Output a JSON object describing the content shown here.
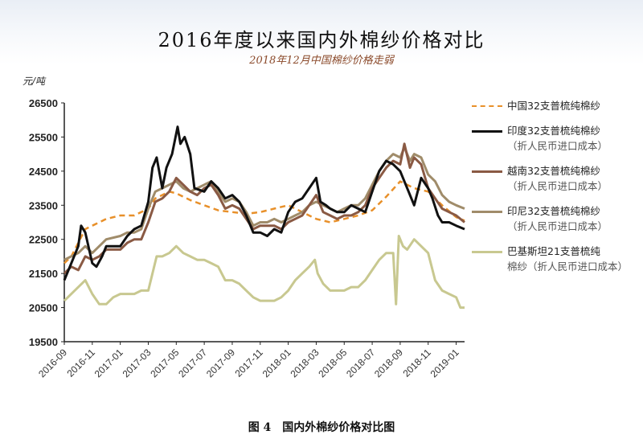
{
  "header": {
    "title": "2016年度以来国内外棉纱价格对比",
    "subtitle": "2018年12月中国棉纱价格走弱",
    "unit": "元/吨"
  },
  "caption": "图 4　国内外棉纱价格对比图",
  "chart_data": {
    "type": "line",
    "y_ticks": [
      "26500",
      "25500",
      "24500",
      "23500",
      "22500",
      "21500",
      "20500",
      "19500"
    ],
    "ylim": [
      19500,
      26500
    ],
    "x_tick_labels": [
      "2016-09",
      "2016-11",
      "2017-01",
      "2017-03",
      "2017-05",
      "2017-07",
      "2017-09",
      "2017-11",
      "2018-01",
      "2018-03",
      "2018-05",
      "2018-07",
      "2018-09",
      "2018-11",
      "2019-01"
    ],
    "x_range_months": [
      0,
      28.6
    ],
    "grid": false,
    "legend_position": "right",
    "series": [
      {
        "name_line1": "中国32支普梳纯棉纱",
        "name_line2": "",
        "color": "#e8902a",
        "dashed": true,
        "width": 2.5,
        "points": [
          [
            0,
            21800
          ],
          [
            0.5,
            22000
          ],
          [
            1,
            22400
          ],
          [
            1.5,
            22800
          ],
          [
            2,
            22900
          ],
          [
            2.5,
            23000
          ],
          [
            3,
            23100
          ],
          [
            4,
            23200
          ],
          [
            5,
            23200
          ],
          [
            6,
            23400
          ],
          [
            6.5,
            23700
          ],
          [
            7,
            23800
          ],
          [
            7.5,
            23900
          ],
          [
            8,
            23850
          ],
          [
            9,
            23650
          ],
          [
            10,
            23500
          ],
          [
            11,
            23350
          ],
          [
            12,
            23300
          ],
          [
            13,
            23250
          ],
          [
            14,
            23300
          ],
          [
            15,
            23400
          ],
          [
            16,
            23500
          ],
          [
            17,
            23300
          ],
          [
            18,
            23100
          ],
          [
            19,
            23000
          ],
          [
            20,
            23100
          ],
          [
            21,
            23200
          ],
          [
            22,
            23350
          ],
          [
            23,
            23750
          ],
          [
            24,
            24200
          ],
          [
            25,
            24000
          ],
          [
            26,
            23900
          ],
          [
            27,
            23500
          ],
          [
            28,
            23150
          ],
          [
            28.6,
            23050
          ]
        ]
      },
      {
        "name_line1": "印度32支普梳纯棉纱",
        "name_line2": "（折人民币进口成本）",
        "color": "#111111",
        "dashed": false,
        "width": 3,
        "points": [
          [
            0,
            21300
          ],
          [
            0.5,
            21800
          ],
          [
            1,
            22300
          ],
          [
            1.2,
            22900
          ],
          [
            1.5,
            22700
          ],
          [
            2,
            21800
          ],
          [
            2.3,
            21700
          ],
          [
            2.7,
            22000
          ],
          [
            3,
            22300
          ],
          [
            4,
            22300
          ],
          [
            4.5,
            22600
          ],
          [
            5,
            22800
          ],
          [
            5.5,
            22900
          ],
          [
            6,
            23600
          ],
          [
            6.3,
            24600
          ],
          [
            6.6,
            24900
          ],
          [
            7,
            24000
          ],
          [
            7.3,
            24600
          ],
          [
            7.7,
            25000
          ],
          [
            8.1,
            25800
          ],
          [
            8.3,
            25300
          ],
          [
            8.6,
            25500
          ],
          [
            9,
            25000
          ],
          [
            9.3,
            24000
          ],
          [
            10,
            23900
          ],
          [
            10.5,
            24200
          ],
          [
            11,
            24000
          ],
          [
            11.5,
            23700
          ],
          [
            12,
            23800
          ],
          [
            12.5,
            23600
          ],
          [
            13,
            23200
          ],
          [
            13.5,
            22700
          ],
          [
            14,
            22700
          ],
          [
            14.5,
            22600
          ],
          [
            15,
            22800
          ],
          [
            15.5,
            22700
          ],
          [
            16,
            23300
          ],
          [
            16.5,
            23600
          ],
          [
            17,
            23700
          ],
          [
            17.5,
            24000
          ],
          [
            18,
            24300
          ],
          [
            18.3,
            23600
          ],
          [
            18.7,
            23500
          ],
          [
            19,
            23400
          ],
          [
            19.5,
            23300
          ],
          [
            20,
            23300
          ],
          [
            20.5,
            23500
          ],
          [
            21,
            23400
          ],
          [
            21.5,
            23300
          ],
          [
            22,
            23900
          ],
          [
            22.5,
            24500
          ],
          [
            23,
            24800
          ],
          [
            23.5,
            24700
          ],
          [
            24,
            24500
          ],
          [
            24.5,
            24000
          ],
          [
            25,
            23500
          ],
          [
            25.5,
            24300
          ],
          [
            26,
            24000
          ],
          [
            26.3,
            23700
          ],
          [
            26.7,
            23200
          ],
          [
            27,
            23000
          ],
          [
            27.5,
            23000
          ],
          [
            28,
            22900
          ],
          [
            28.6,
            22800
          ]
        ]
      },
      {
        "name_line1": "越南32支普梳纯棉纱",
        "name_line2": "（折人民币进口成本）",
        "color": "#8a5a44",
        "dashed": false,
        "width": 3,
        "points": [
          [
            0,
            21500
          ],
          [
            0.5,
            21700
          ],
          [
            1,
            21600
          ],
          [
            1.5,
            22000
          ],
          [
            2,
            21900
          ],
          [
            2.5,
            22000
          ],
          [
            3,
            22200
          ],
          [
            4,
            22200
          ],
          [
            4.5,
            22400
          ],
          [
            5,
            22500
          ],
          [
            5.5,
            22500
          ],
          [
            6,
            23000
          ],
          [
            6.5,
            23600
          ],
          [
            7,
            23700
          ],
          [
            7.5,
            23900
          ],
          [
            8,
            24300
          ],
          [
            8.5,
            24100
          ],
          [
            9,
            23900
          ],
          [
            9.5,
            23800
          ],
          [
            10,
            24000
          ],
          [
            10.5,
            24100
          ],
          [
            11,
            23800
          ],
          [
            11.5,
            23400
          ],
          [
            12,
            23500
          ],
          [
            12.5,
            23400
          ],
          [
            13,
            23100
          ],
          [
            13.5,
            22800
          ],
          [
            14,
            22900
          ],
          [
            14.5,
            22900
          ],
          [
            15,
            22900
          ],
          [
            15.5,
            22800
          ],
          [
            16,
            23000
          ],
          [
            16.5,
            23100
          ],
          [
            17,
            23200
          ],
          [
            17.5,
            23500
          ],
          [
            18,
            23800
          ],
          [
            18.5,
            23300
          ],
          [
            19,
            23200
          ],
          [
            19.5,
            23100
          ],
          [
            20,
            23200
          ],
          [
            20.5,
            23200
          ],
          [
            21,
            23300
          ],
          [
            21.5,
            23500
          ],
          [
            22,
            24000
          ],
          [
            22.5,
            24300
          ],
          [
            23,
            24600
          ],
          [
            23.5,
            24800
          ],
          [
            24,
            24700
          ],
          [
            24.3,
            25300
          ],
          [
            24.7,
            24600
          ],
          [
            25,
            24900
          ],
          [
            25.5,
            24700
          ],
          [
            26,
            24000
          ],
          [
            26.5,
            23700
          ],
          [
            27,
            23400
          ],
          [
            27.5,
            23300
          ],
          [
            28,
            23200
          ],
          [
            28.6,
            23000
          ]
        ]
      },
      {
        "name_line1": "印尼32支普梳纯棉纱",
        "name_line2": "（折人民币进口成本）",
        "color": "#a08c6a",
        "dashed": false,
        "width": 3,
        "points": [
          [
            0,
            21900
          ],
          [
            0.5,
            22000
          ],
          [
            1,
            22100
          ],
          [
            1.5,
            22300
          ],
          [
            2,
            22100
          ],
          [
            2.5,
            22300
          ],
          [
            3,
            22500
          ],
          [
            4,
            22600
          ],
          [
            4.5,
            22700
          ],
          [
            5,
            22700
          ],
          [
            5.5,
            22800
          ],
          [
            6,
            23400
          ],
          [
            6.5,
            23900
          ],
          [
            7,
            24000
          ],
          [
            7.5,
            24100
          ],
          [
            8,
            24200
          ],
          [
            8.5,
            24000
          ],
          [
            9,
            23900
          ],
          [
            9.5,
            24000
          ],
          [
            10,
            24100
          ],
          [
            10.5,
            24200
          ],
          [
            11,
            23900
          ],
          [
            11.5,
            23600
          ],
          [
            12,
            23700
          ],
          [
            12.5,
            23600
          ],
          [
            13,
            23300
          ],
          [
            13.5,
            22900
          ],
          [
            14,
            23000
          ],
          [
            14.5,
            23000
          ],
          [
            15,
            23100
          ],
          [
            15.5,
            23000
          ],
          [
            16,
            23100
          ],
          [
            16.5,
            23200
          ],
          [
            17,
            23300
          ],
          [
            17.5,
            23500
          ],
          [
            18,
            23600
          ],
          [
            18.5,
            23500
          ],
          [
            19,
            23400
          ],
          [
            19.5,
            23300
          ],
          [
            20,
            23400
          ],
          [
            20.5,
            23500
          ],
          [
            21,
            23500
          ],
          [
            21.5,
            23700
          ],
          [
            22,
            24100
          ],
          [
            22.5,
            24500
          ],
          [
            23,
            24800
          ],
          [
            23.5,
            25000
          ],
          [
            24,
            24900
          ],
          [
            24.3,
            25200
          ],
          [
            24.7,
            24800
          ],
          [
            25,
            25000
          ],
          [
            25.5,
            24900
          ],
          [
            26,
            24400
          ],
          [
            26.5,
            24200
          ],
          [
            27,
            23800
          ],
          [
            27.5,
            23600
          ],
          [
            28,
            23500
          ],
          [
            28.6,
            23400
          ]
        ]
      },
      {
        "name_line1": "巴基斯坦21支普梳纯",
        "name_line2": "棉纱（折人民币进口成本）",
        "color": "#c8c890",
        "dashed": false,
        "width": 3,
        "points": [
          [
            0,
            20700
          ],
          [
            0.5,
            20900
          ],
          [
            1,
            21100
          ],
          [
            1.5,
            21300
          ],
          [
            2,
            20900
          ],
          [
            2.5,
            20600
          ],
          [
            3,
            20600
          ],
          [
            3.5,
            20800
          ],
          [
            4,
            20900
          ],
          [
            4.5,
            20900
          ],
          [
            5,
            20900
          ],
          [
            5.5,
            21000
          ],
          [
            6,
            21000
          ],
          [
            6.3,
            21500
          ],
          [
            6.6,
            22000
          ],
          [
            7,
            22000
          ],
          [
            7.5,
            22100
          ],
          [
            8,
            22300
          ],
          [
            8.5,
            22100
          ],
          [
            9,
            22000
          ],
          [
            9.5,
            21900
          ],
          [
            10,
            21900
          ],
          [
            10.5,
            21800
          ],
          [
            11,
            21700
          ],
          [
            11.5,
            21300
          ],
          [
            12,
            21300
          ],
          [
            12.5,
            21200
          ],
          [
            13,
            21000
          ],
          [
            13.5,
            20800
          ],
          [
            14,
            20700
          ],
          [
            14.5,
            20700
          ],
          [
            15,
            20700
          ],
          [
            15.5,
            20800
          ],
          [
            16,
            21000
          ],
          [
            16.5,
            21300
          ],
          [
            17,
            21500
          ],
          [
            17.5,
            21700
          ],
          [
            17.9,
            21900
          ],
          [
            18.1,
            21500
          ],
          [
            18.5,
            21200
          ],
          [
            19,
            21000
          ],
          [
            19.5,
            21000
          ],
          [
            20,
            21000
          ],
          [
            20.5,
            21100
          ],
          [
            21,
            21100
          ],
          [
            21.5,
            21300
          ],
          [
            22,
            21600
          ],
          [
            22.5,
            21900
          ],
          [
            23,
            22100
          ],
          [
            23.5,
            22100
          ],
          [
            23.7,
            20600
          ],
          [
            23.9,
            22600
          ],
          [
            24.2,
            22300
          ],
          [
            24.5,
            22200
          ],
          [
            25,
            22500
          ],
          [
            25.5,
            22300
          ],
          [
            26,
            22100
          ],
          [
            26.5,
            21300
          ],
          [
            27,
            21000
          ],
          [
            27.5,
            20900
          ],
          [
            28,
            20800
          ],
          [
            28.3,
            20500
          ],
          [
            28.6,
            20500
          ]
        ]
      }
    ]
  }
}
